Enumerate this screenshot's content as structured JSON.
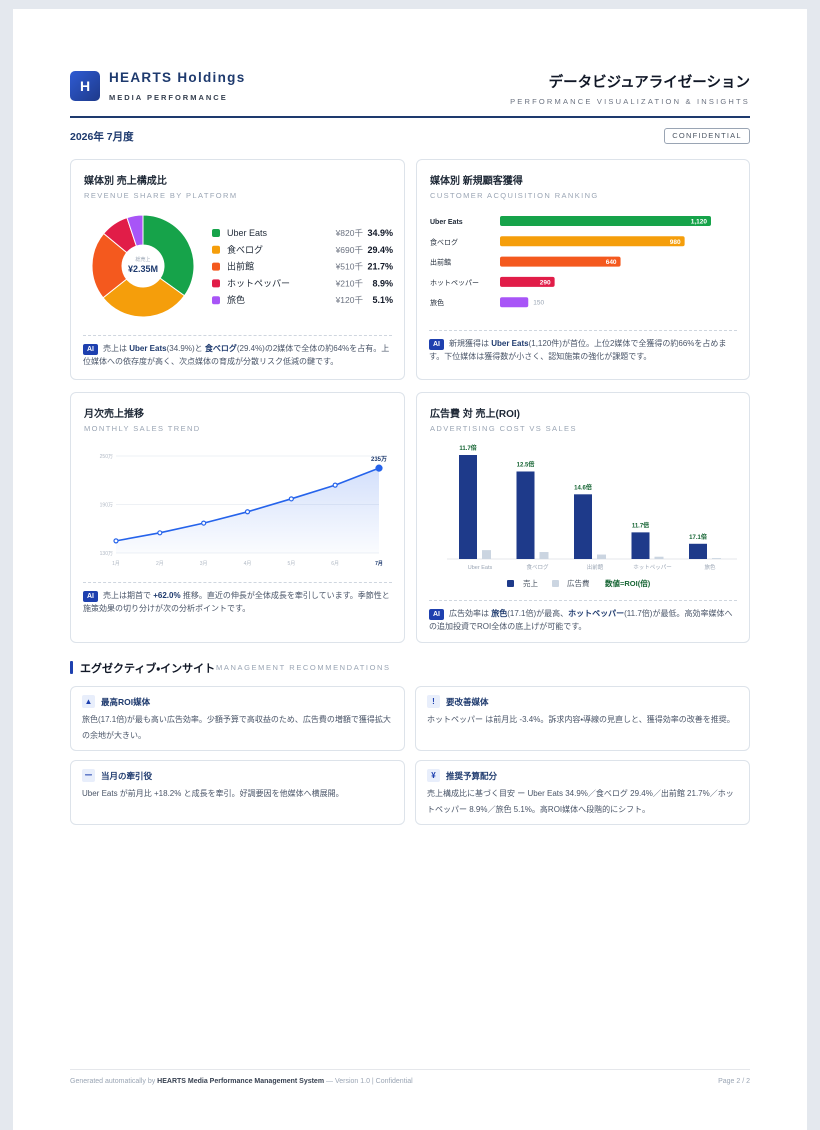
{
  "header": {
    "logo": "H",
    "company": "HEARTS Holdings",
    "division": "MEDIA PERFORMANCE",
    "title": "データビジュアライゼーション",
    "subtitle": "PERFORMANCE VISUALIZATION & INSIGHTS",
    "period": "2026年 7月度",
    "badge": "CONFIDENTIAL"
  },
  "chart_data": [
    {
      "type": "donut",
      "title": "媒体別 売上構成比",
      "subtitle": "REVENUE SHARE BY PLATFORM",
      "categories": [
        "Uber Eats",
        "食べログ",
        "出前館",
        "ホットペッパー",
        "旅色"
      ],
      "values": [
        34.9,
        29.4,
        21.7,
        8.9,
        5.1
      ],
      "value_labels": [
        "34.9%",
        "29.4%",
        "21.7%",
        "8.9%",
        "5.1%"
      ],
      "amount_labels": [
        "¥820千",
        "¥690千",
        "¥510千",
        "¥210千",
        "¥120千"
      ],
      "colors": [
        "#16a34a",
        "#f59e0b",
        "#f4591e",
        "#e11d48",
        "#a855f7"
      ],
      "center_label": "総売上",
      "center_value": "¥2.35M",
      "note": {
        "badge": "AI",
        "parts": [
          {
            "text": "売上は "
          },
          {
            "text": "Uber Eats",
            "strong": true
          },
          {
            "text": "(34.9%)と "
          },
          {
            "text": "食べログ",
            "strong": true
          },
          {
            "text": "(29.4%)の2媒体で全体の約64%を占有。上位媒体への依存度が高く、次点媒体の育成が分散リスク低減の鍵です。"
          }
        ]
      }
    },
    {
      "type": "bar",
      "orientation": "horizontal",
      "title": "媒体別 新規顧客獲得",
      "subtitle": "CUSTOMER ACQUISITION RANKING",
      "categories": [
        "Uber Eats",
        "食べログ",
        "出前館",
        "ホットペッパー",
        "旅色"
      ],
      "values": [
        1120,
        980,
        640,
        290,
        150
      ],
      "value_labels": [
        "1,120",
        "980",
        "640",
        "290",
        "150"
      ],
      "colors": [
        "#16a34a",
        "#f59e0b",
        "#f4591e",
        "#e11d48",
        "#a855f7"
      ],
      "note": {
        "badge": "AI",
        "parts": [
          {
            "text": "新規獲得は "
          },
          {
            "text": "Uber Eats",
            "strong": true
          },
          {
            "text": "(1,120件)が首位。上位2媒体で全獲得の約66%を占めます。下位媒体は獲得数が小さく、認知施策の強化が課題です。"
          }
        ]
      }
    },
    {
      "type": "line",
      "title": "月次売上推移",
      "subtitle": "MONTHLY SALES TREND",
      "categories": [
        "1月",
        "2月",
        "3月",
        "4月",
        "5月",
        "6月",
        "7月"
      ],
      "series": [
        {
          "color": "#2563eb",
          "values": [
            145,
            155,
            167,
            181,
            197,
            214,
            235
          ],
          "value_labels": [
            null,
            null,
            null,
            null,
            null,
            null,
            "235万"
          ]
        }
      ],
      "ylim": [
        130,
        250
      ],
      "yticks": [
        {
          "value": 130,
          "label": "130万"
        },
        {
          "value": 190,
          "label": "190万"
        },
        {
          "value": 250,
          "label": "250万"
        }
      ],
      "grid": true,
      "note": {
        "badge": "AI",
        "parts": [
          {
            "text": "売上は期首で "
          },
          {
            "text": "+62.0%",
            "strong": true
          },
          {
            "text": " 推移。直近の伸長が全体成長を牽引しています。季節性と施策効果の切り分けが次の分析ポイントです。"
          }
        ]
      }
    },
    {
      "type": "grouped-bar",
      "title": "広告費 対 売上(ROI)",
      "subtitle": "ADVERTISING COST VS SALES",
      "categories": [
        "Uber Eats",
        "食べログ",
        "出前館",
        "ホットペッパー",
        "旅色"
      ],
      "series": [
        {
          "name": "売上",
          "color": "#1e3a8a",
          "values": [
            820,
            690,
            510,
            210,
            120
          ]
        },
        {
          "name": "広告費",
          "color": "#cbd5e1",
          "values": [
            70,
            55,
            35,
            18,
            7
          ]
        }
      ],
      "roi": [
        11.7,
        12.5,
        14.6,
        11.7,
        17.1
      ],
      "roi_labels": [
        "11.7倍",
        "12.5倍",
        "14.6倍",
        "11.7倍",
        "17.1倍"
      ],
      "roi_color": "#166534",
      "roi_legend": "数値=ROI(倍)",
      "note": {
        "badge": "AI",
        "parts": [
          {
            "text": "広告効率は "
          },
          {
            "text": "旅色",
            "strong": true
          },
          {
            "text": "(17.1倍)が最高、"
          },
          {
            "text": "ホットペッパー",
            "strong": true
          },
          {
            "text": "(11.7倍)が最低。高効率媒体への追加投資でROI全体の底上げが可能です。"
          }
        ]
      }
    }
  ],
  "insights": {
    "title": "エグゼクティブ・インサイト",
    "subtitle": "MANAGEMENT RECOMMENDATIONS",
    "cards": [
      {
        "icon": "▲",
        "title": "最高ROI媒体",
        "body": "旅色(17.1倍)が最も高い広告効率。少額予算で高収益のため、広告費の増額で獲得拡大の余地が大きい。"
      },
      {
        "icon": "!",
        "title": "要改善媒体",
        "body": "ホットペッパー は前月比 -3.4%。訴求内容・導線の見直しと、獲得効率の改善を推奨。"
      },
      {
        "icon": "ー",
        "title": "当月の牽引役",
        "body": "Uber Eats が前月比 +18.2% と成長を牽引。好調要因を他媒体へ横展開。"
      },
      {
        "icon": "¥",
        "title": "推奨予算配分",
        "body": "売上構成比に基づく目安 ー Uber Eats 34.9%／食べログ 29.4%／出前館 21.7%／ホットペッパー 8.9%／旅色 5.1%。高ROI媒体へ段階的にシフト。"
      }
    ]
  },
  "footer": {
    "parts": [
      {
        "text": "Generated automatically by "
      },
      {
        "text": "HEARTS Media Performance Management System",
        "strong": true
      },
      {
        "text": " — Version 1.0 | Confidential"
      }
    ],
    "page": "Page 2 / 2"
  }
}
